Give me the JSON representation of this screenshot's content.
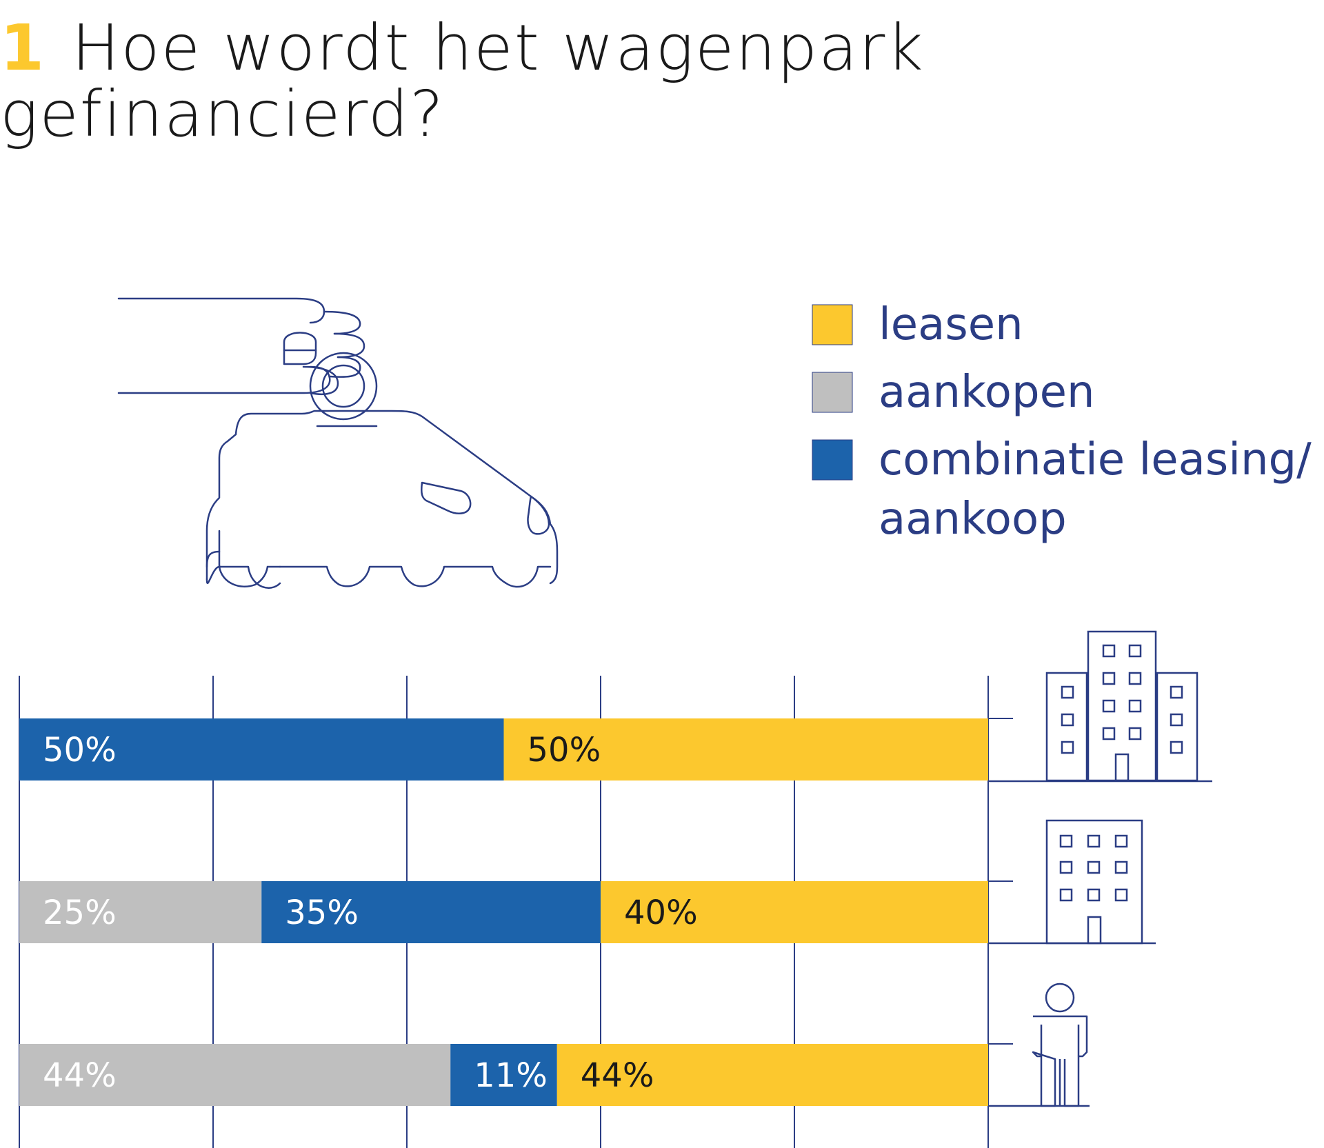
{
  "title": {
    "number": "1",
    "line1": "Hoe wordt het wagenpark",
    "line2": "gefinancierd?"
  },
  "colors": {
    "leasen": "#fcc82e",
    "aankopen": "#bfbfbf",
    "combinatie": "#1c63ab",
    "outline": "#2b3d84",
    "grid": "#2b3d84"
  },
  "legend": [
    {
      "key": "leasen",
      "lines": [
        "leasen"
      ]
    },
    {
      "key": "aankopen",
      "lines": [
        "aankopen"
      ]
    },
    {
      "key": "combinatie",
      "lines": [
        "combinatie leasing/",
        "aankoop"
      ]
    }
  ],
  "icons": [
    "hand-coin-car-icon",
    "large-company-icon",
    "medium-company-icon",
    "person-icon"
  ],
  "chart_data": {
    "type": "bar",
    "stacked": true,
    "orientation": "horizontal",
    "xlim": [
      0,
      100
    ],
    "grid": true,
    "legend_position": "top-right",
    "categories": [
      "large-company",
      "medium-company",
      "individual"
    ],
    "rows": [
      {
        "icon": "large-company-icon",
        "segments": [
          {
            "series": "combinatie",
            "value": 50,
            "label": "50%"
          },
          {
            "series": "leasen",
            "value": 50,
            "label": "50%"
          }
        ]
      },
      {
        "icon": "medium-company-icon",
        "segments": [
          {
            "series": "aankopen",
            "value": 25,
            "label": "25%"
          },
          {
            "series": "combinatie",
            "value": 35,
            "label": "35%"
          },
          {
            "series": "leasen",
            "value": 40,
            "label": "40%"
          }
        ]
      },
      {
        "icon": "person-icon",
        "segments": [
          {
            "series": "aankopen",
            "value": 44.5,
            "label": "44%"
          },
          {
            "series": "combinatie",
            "value": 11,
            "label": "11%"
          },
          {
            "series": "leasen",
            "value": 44.5,
            "label": "44%"
          }
        ]
      }
    ]
  }
}
